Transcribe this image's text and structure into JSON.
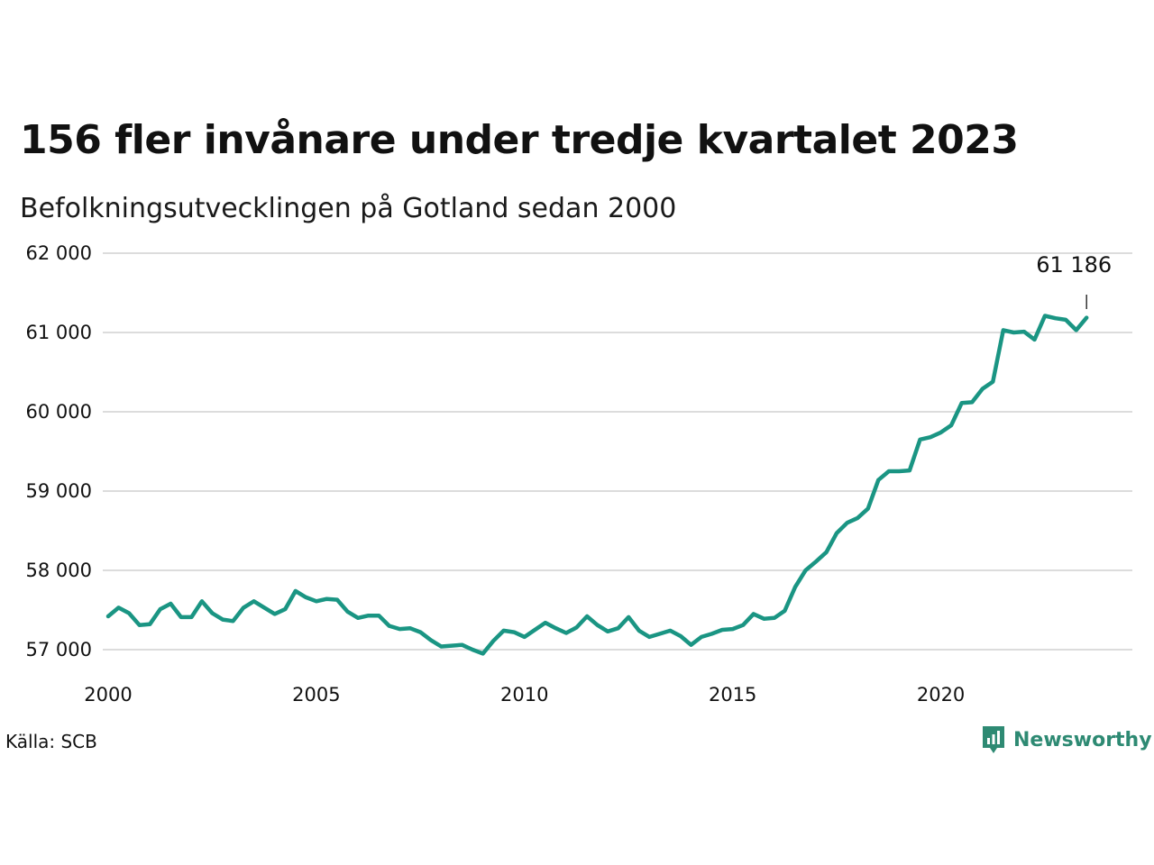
{
  "title": "156 fler invånare under tredje kvartalet 2023",
  "subtitle": "Befolkningsutvecklingen på Gotland sedan 2000",
  "source": "Källa: SCB",
  "brand": {
    "name": "Newsworthy",
    "icon": "newsworthy-logo-icon",
    "color": "#2e8a73"
  },
  "chart_data": {
    "type": "line",
    "title": "156 fler invånare under tredje kvartalet 2023",
    "subtitle": "Befolkningsutvecklingen på Gotland sedan 2000",
    "xlabel": "",
    "ylabel": "",
    "xlim": [
      2000,
      2024.6
    ],
    "ylim": [
      57000,
      62000
    ],
    "grid": "horizontal",
    "color": "#1a9583",
    "x_ticks": [
      2000,
      2005,
      2010,
      2015,
      2020
    ],
    "x_tick_labels": [
      "2000",
      "2005",
      "2010",
      "2015",
      "2020"
    ],
    "y_ticks": [
      57000,
      58000,
      59000,
      60000,
      61000,
      62000
    ],
    "y_tick_labels": [
      "57 000",
      "58 000",
      "59 000",
      "60 000",
      "61 000",
      "62 000"
    ],
    "annotation": {
      "label": "61 186",
      "x": 2023.5,
      "y": 61186
    },
    "series": [
      {
        "x": [
          2000.0,
          2000.25,
          2000.5,
          2000.75,
          2001.0,
          2001.25,
          2001.5,
          2001.75,
          2002.0,
          2002.25,
          2002.5,
          2002.75,
          2003.0,
          2003.25,
          2003.5,
          2003.75,
          2004.0,
          2004.25,
          2004.5,
          2004.75,
          2005.0,
          2005.25,
          2005.5,
          2005.75,
          2006.0,
          2006.25,
          2006.5,
          2006.75,
          2007.0,
          2007.25,
          2007.5,
          2007.75,
          2008.0,
          2008.25,
          2008.5,
          2008.75,
          2009.0,
          2009.25,
          2009.5,
          2009.75,
          2010.0,
          2010.25,
          2010.5,
          2010.75,
          2011.0,
          2011.25,
          2011.5,
          2011.75,
          2012.0,
          2012.25,
          2012.5,
          2012.75,
          2013.0,
          2013.25,
          2013.5,
          2013.75,
          2014.0,
          2014.25,
          2014.5,
          2014.75,
          2015.0,
          2015.25,
          2015.5,
          2015.75,
          2016.0,
          2016.25,
          2016.5,
          2016.75,
          2017.0,
          2017.25,
          2017.5,
          2017.75,
          2018.0,
          2018.25,
          2018.5,
          2018.75,
          2019.0,
          2019.25,
          2019.5,
          2019.75,
          2020.0,
          2020.25,
          2020.5,
          2020.75,
          2021.0,
          2021.25,
          2021.5,
          2021.75,
          2022.0,
          2022.25,
          2022.5,
          2022.75,
          2023.0,
          2023.25,
          2023.5
        ],
        "values": [
          57420,
          57530,
          57460,
          57310,
          57320,
          57510,
          57580,
          57410,
          57410,
          57610,
          57460,
          57380,
          57360,
          57530,
          57610,
          57530,
          57450,
          57510,
          57740,
          57660,
          57610,
          57640,
          57630,
          57480,
          57400,
          57430,
          57430,
          57300,
          57260,
          57270,
          57220,
          57120,
          57040,
          57050,
          57060,
          57000,
          56950,
          57110,
          57240,
          57220,
          57160,
          57250,
          57340,
          57270,
          57210,
          57280,
          57420,
          57310,
          57230,
          57270,
          57410,
          57240,
          57160,
          57200,
          57240,
          57170,
          57060,
          57160,
          57200,
          57250,
          57260,
          57310,
          57450,
          57390,
          57400,
          57490,
          57790,
          58000,
          58110,
          58230,
          58470,
          58600,
          58660,
          58780,
          59140,
          59250,
          59250,
          59260,
          59650,
          59680,
          59740,
          59830,
          60110,
          60120,
          60290,
          60380,
          61030,
          61000,
          61010,
          60910,
          61210,
          61180,
          61160,
          61030,
          61186
        ]
      }
    ]
  }
}
